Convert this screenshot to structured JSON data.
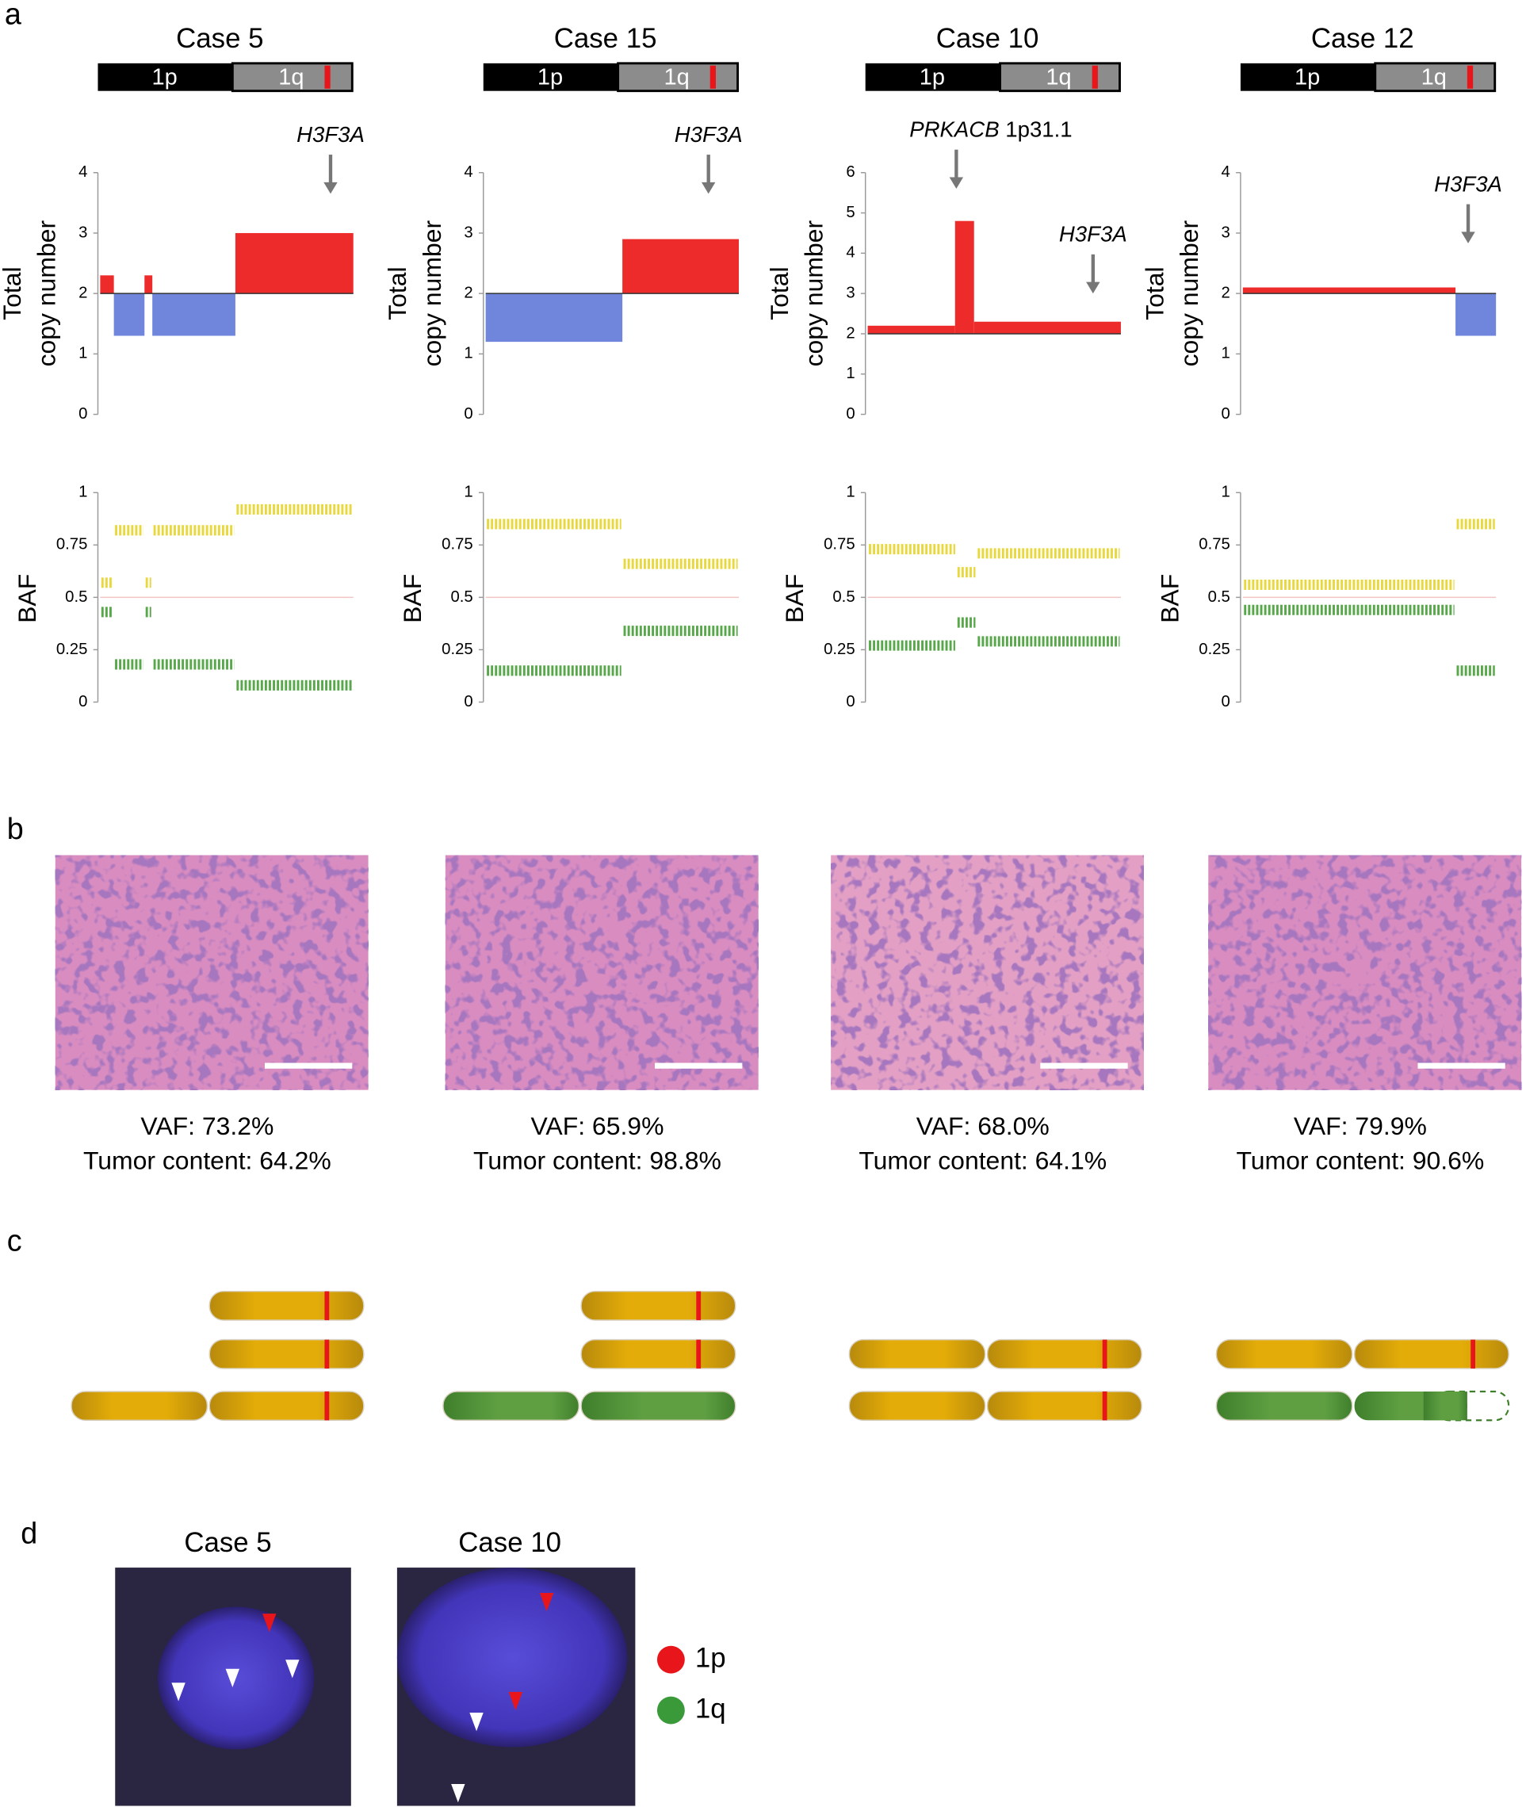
{
  "panel_labels": [
    "a",
    "b",
    "c",
    "d"
  ],
  "cases": [
    {
      "title": "Case 5",
      "ideogram": {
        "p": "1p",
        "q": "1q"
      },
      "copy_number": {
        "type": "step",
        "ylabel": [
          "Total",
          "copy number"
        ],
        "xlim": [
          0,
          100
        ],
        "ylim": [
          0,
          4
        ],
        "yticks": [
          0,
          1,
          2,
          3,
          4
        ],
        "baseline": 2,
        "gain_color": "#ee2b2b",
        "loss_color": "#7086dc",
        "segments": [
          {
            "start": 0,
            "end": 5.4,
            "value": 2.3
          },
          {
            "start": 5.4,
            "end": 17.5,
            "value": 1.3
          },
          {
            "start": 17.5,
            "end": 20.6,
            "value": 2.3
          },
          {
            "start": 20.6,
            "end": 53.4,
            "value": 1.3
          },
          {
            "start": 53.4,
            "end": 100,
            "value": 3.0
          }
        ],
        "annotations": [
          {
            "text": "H3F3A",
            "x": 91,
            "y": 3.65
          }
        ]
      },
      "baf": {
        "type": "band",
        "ylabel": "BAF",
        "xlim": [
          0,
          100
        ],
        "ylim": [
          0,
          1
        ],
        "yticks": [
          0,
          0.25,
          0.5,
          0.75,
          1
        ],
        "reference": 0.5,
        "upper_color": "#e6d21c",
        "lower_color": "#3c9a2c",
        "segments": [
          {
            "start": 0,
            "end": 5.4,
            "upper": 0.57,
            "lower": 0.43
          },
          {
            "start": 5.4,
            "end": 17.5,
            "upper": 0.82,
            "lower": 0.18
          },
          {
            "start": 17.5,
            "end": 20.6,
            "upper": 0.57,
            "lower": 0.43
          },
          {
            "start": 20.6,
            "end": 53.4,
            "upper": 0.82,
            "lower": 0.18
          },
          {
            "start": 53.4,
            "end": 100,
            "upper": 0.92,
            "lower": 0.08
          }
        ]
      },
      "vaf": "VAF: 73.2%",
      "tumor_content": "Tumor content: 64.2%"
    },
    {
      "title": "Case 15",
      "ideogram": {
        "p": "1p",
        "q": "1q"
      },
      "copy_number": {
        "type": "step",
        "ylabel": [
          "Total",
          "copy number"
        ],
        "xlim": [
          0,
          100
        ],
        "ylim": [
          0,
          4
        ],
        "yticks": [
          0,
          1,
          2,
          3,
          4
        ],
        "baseline": 2,
        "gain_color": "#ee2b2b",
        "loss_color": "#7086dc",
        "segments": [
          {
            "start": 0,
            "end": 54,
            "value": 1.2
          },
          {
            "start": 54,
            "end": 100,
            "value": 2.9
          }
        ],
        "annotations": [
          {
            "text": "H3F3A",
            "x": 88,
            "y": 3.65
          }
        ]
      },
      "baf": {
        "type": "band",
        "ylabel": "BAF",
        "xlim": [
          0,
          100
        ],
        "ylim": [
          0,
          1
        ],
        "yticks": [
          0,
          0.25,
          0.5,
          0.75,
          1
        ],
        "reference": 0.5,
        "upper_color": "#e6d21c",
        "lower_color": "#3c9a2c",
        "segments": [
          {
            "start": 0,
            "end": 54,
            "upper": 0.85,
            "lower": 0.15
          },
          {
            "start": 54,
            "end": 100,
            "upper": 0.66,
            "lower": 0.34
          }
        ]
      },
      "vaf": "VAF: 65.9%",
      "tumor_content": "Tumor content: 98.8%"
    },
    {
      "title": "Case 10",
      "ideogram": {
        "p": "1p",
        "q": "1q"
      },
      "copy_number": {
        "type": "step",
        "ylabel": [
          "Total",
          "copy number"
        ],
        "xlim": [
          0,
          100
        ],
        "ylim": [
          0,
          6
        ],
        "yticks": [
          0,
          1,
          2,
          3,
          4,
          5,
          6
        ],
        "baseline": 2,
        "gain_color": "#ee2b2b",
        "loss_color": "#7086dc",
        "segments": [
          {
            "start": 0,
            "end": 34.5,
            "value": 2.2
          },
          {
            "start": 34.5,
            "end": 42,
            "value": 4.8
          },
          {
            "start": 42,
            "end": 100,
            "value": 2.3
          }
        ],
        "annotations": [
          {
            "text": "PRKACB",
            "suffix": "1p31.1",
            "x": 35,
            "y": 5.6
          },
          {
            "text": "H3F3A",
            "x": 89,
            "y": 3.0
          }
        ]
      },
      "baf": {
        "type": "band",
        "ylabel": "BAF",
        "xlim": [
          0,
          100
        ],
        "ylim": [
          0,
          1
        ],
        "yticks": [
          0,
          0.25,
          0.5,
          0.75,
          1
        ],
        "reference": 0.5,
        "upper_color": "#e6d21c",
        "lower_color": "#3c9a2c",
        "segments": [
          {
            "start": 0,
            "end": 35,
            "upper": 0.73,
            "lower": 0.27
          },
          {
            "start": 35,
            "end": 43,
            "upper": 0.62,
            "lower": 0.38
          },
          {
            "start": 43,
            "end": 100,
            "upper": 0.71,
            "lower": 0.29
          }
        ]
      },
      "vaf": "VAF: 68.0%",
      "tumor_content": "Tumor content: 64.1%"
    },
    {
      "title": "Case 12",
      "ideogram": {
        "p": "1p",
        "q": "1q"
      },
      "copy_number": {
        "type": "step",
        "ylabel": [
          "Total",
          "copy number"
        ],
        "xlim": [
          0,
          100
        ],
        "ylim": [
          0,
          4
        ],
        "yticks": [
          0,
          1,
          2,
          3,
          4
        ],
        "baseline": 2,
        "gain_color": "#ee2b2b",
        "loss_color": "#7086dc",
        "segments": [
          {
            "start": 0,
            "end": 84,
            "value": 2.1
          },
          {
            "start": 84,
            "end": 100,
            "value": 1.3
          }
        ],
        "annotations": [
          {
            "text": "H3F3A",
            "x": 89,
            "y": 2.83
          }
        ]
      },
      "baf": {
        "type": "band",
        "ylabel": "BAF",
        "xlim": [
          0,
          100
        ],
        "ylim": [
          0,
          1
        ],
        "yticks": [
          0,
          0.25,
          0.5,
          0.75,
          1
        ],
        "reference": 0.5,
        "upper_color": "#e6d21c",
        "lower_color": "#3c9a2c",
        "segments": [
          {
            "start": 0,
            "end": 84,
            "upper": 0.56,
            "lower": 0.44
          },
          {
            "start": 84,
            "end": 100,
            "upper": 0.85,
            "lower": 0.15
          }
        ]
      },
      "vaf": "VAF: 79.9%",
      "tumor_content": "Tumor content: 90.6%"
    }
  ],
  "fish": {
    "images": [
      {
        "title": "Case 5"
      },
      {
        "title": "Case 10"
      }
    ],
    "legend": [
      {
        "label": "1p",
        "color": "#e8161b"
      },
      {
        "label": "1q",
        "color": "#3a9a3a"
      }
    ]
  }
}
